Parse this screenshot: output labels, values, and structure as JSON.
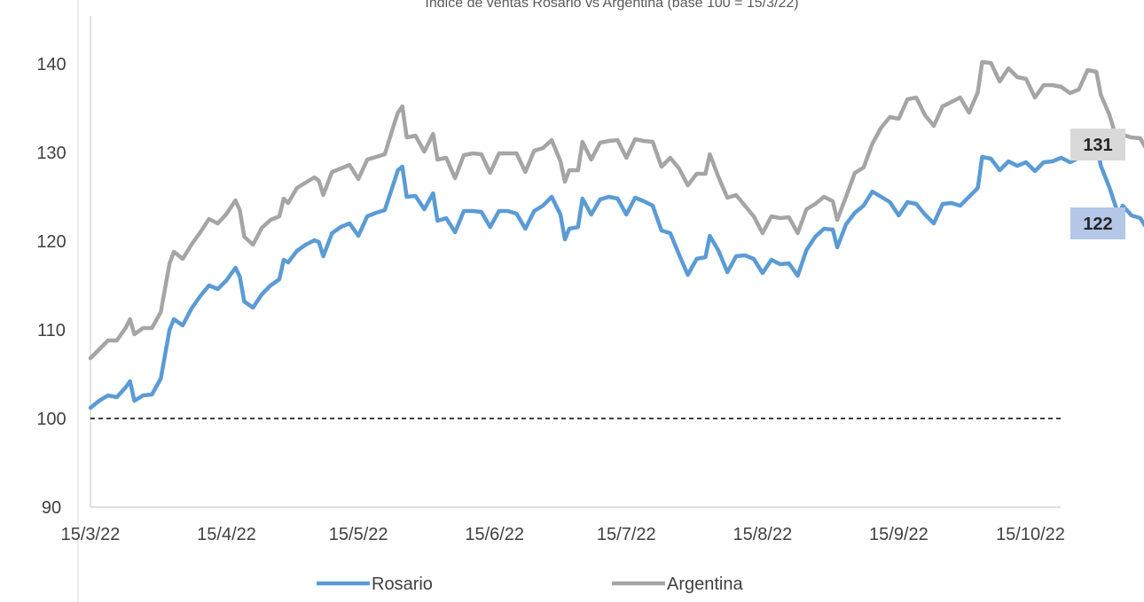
{
  "chart_data": {
    "type": "line",
    "title": "Índice de ventas Rosario vs Argentina (base 100 = 15/3/22)",
    "xlabel": "",
    "ylabel": "",
    "ylim": [
      90,
      145
    ],
    "yticks": [
      "90",
      "100",
      "110",
      "120",
      "130",
      "140"
    ],
    "xtick_labels": [
      "15/3/22",
      "15/4/22",
      "15/5/22",
      "15/6/22",
      "15/7/22",
      "15/8/22",
      "15/9/22",
      "15/10/22"
    ],
    "x_start": "15/3/22",
    "x_end": "15/10/22",
    "reference_line": 100,
    "grid": false,
    "legend_position": "bottom",
    "series": [
      {
        "name": "Rosario",
        "color": "#5b9bd5",
        "end_label": "122",
        "label_bg": "#b4c7e7",
        "points": [
          [
            "15/3/22",
            101.2
          ],
          [
            "17/3/22",
            102.0
          ],
          [
            "19/3/22",
            102.6
          ],
          [
            "21/3/22",
            102.4
          ],
          [
            "23/3/22",
            103.5
          ],
          [
            "24/3/22",
            104.2
          ],
          [
            "25/3/22",
            102.0
          ],
          [
            "27/3/22",
            102.6
          ],
          [
            "29/3/22",
            102.7
          ],
          [
            "31/3/22",
            104.5
          ],
          [
            "2/4/22",
            110.0
          ],
          [
            "3/4/22",
            111.2
          ],
          [
            "5/4/22",
            110.5
          ],
          [
            "7/4/22",
            112.4
          ],
          [
            "9/4/22",
            113.8
          ],
          [
            "11/4/22",
            115.0
          ],
          [
            "13/4/22",
            114.6
          ],
          [
            "15/4/22",
            115.6
          ],
          [
            "17/4/22",
            117.0
          ],
          [
            "18/4/22",
            116.0
          ],
          [
            "19/4/22",
            113.2
          ],
          [
            "21/4/22",
            112.5
          ],
          [
            "23/4/22",
            114.0
          ],
          [
            "25/4/22",
            115.0
          ],
          [
            "27/4/22",
            115.7
          ],
          [
            "28/4/22",
            117.9
          ],
          [
            "29/4/22",
            117.6
          ],
          [
            "1/5/22",
            118.9
          ],
          [
            "3/5/22",
            119.6
          ],
          [
            "5/5/22",
            120.1
          ],
          [
            "6/5/22",
            119.9
          ],
          [
            "7/5/22",
            118.3
          ],
          [
            "9/5/22",
            120.9
          ],
          [
            "11/5/22",
            121.6
          ],
          [
            "13/5/22",
            122.0
          ],
          [
            "15/5/22",
            120.6
          ],
          [
            "17/5/22",
            122.8
          ],
          [
            "19/5/22",
            123.2
          ],
          [
            "21/5/22",
            123.5
          ],
          [
            "23/5/22",
            126.5
          ],
          [
            "24/5/22",
            128.0
          ],
          [
            "25/5/22",
            128.4
          ],
          [
            "26/5/22",
            125.0
          ],
          [
            "28/5/22",
            125.1
          ],
          [
            "30/5/22",
            123.6
          ],
          [
            "1/6/22",
            125.4
          ],
          [
            "2/6/22",
            122.3
          ],
          [
            "4/6/22",
            122.6
          ],
          [
            "6/6/22",
            121.0
          ],
          [
            "8/6/22",
            123.4
          ],
          [
            "10/6/22",
            123.4
          ],
          [
            "12/6/22",
            123.3
          ],
          [
            "14/6/22",
            121.6
          ],
          [
            "16/6/22",
            123.4
          ],
          [
            "18/6/22",
            123.4
          ],
          [
            "20/6/22",
            123.1
          ],
          [
            "22/6/22",
            121.4
          ],
          [
            "24/6/22",
            123.4
          ],
          [
            "26/6/22",
            124.0
          ],
          [
            "28/6/22",
            125.0
          ],
          [
            "30/6/22",
            123.0
          ],
          [
            "1/7/22",
            120.2
          ],
          [
            "2/7/22",
            121.4
          ],
          [
            "4/7/22",
            121.6
          ],
          [
            "5/7/22",
            124.8
          ],
          [
            "7/7/22",
            123.0
          ],
          [
            "9/7/22",
            124.7
          ],
          [
            "11/7/22",
            125.0
          ],
          [
            "13/7/22",
            124.8
          ],
          [
            "15/7/22",
            123.0
          ],
          [
            "17/7/22",
            124.9
          ],
          [
            "19/7/22",
            124.5
          ],
          [
            "21/7/22",
            124.0
          ],
          [
            "23/7/22",
            121.2
          ],
          [
            "25/7/22",
            120.9
          ],
          [
            "27/7/22",
            118.5
          ],
          [
            "29/7/22",
            116.2
          ],
          [
            "31/7/22",
            118.0
          ],
          [
            "2/8/22",
            118.2
          ],
          [
            "3/8/22",
            120.6
          ],
          [
            "5/8/22",
            118.9
          ],
          [
            "7/8/22",
            116.5
          ],
          [
            "9/8/22",
            118.3
          ],
          [
            "11/8/22",
            118.4
          ],
          [
            "13/8/22",
            118.0
          ],
          [
            "15/8/22",
            116.4
          ],
          [
            "17/8/22",
            117.9
          ],
          [
            "19/8/22",
            117.4
          ],
          [
            "21/8/22",
            117.5
          ],
          [
            "23/8/22",
            116.1
          ],
          [
            "25/8/22",
            119.0
          ],
          [
            "27/8/22",
            120.5
          ],
          [
            "29/8/22",
            121.4
          ],
          [
            "31/8/22",
            121.3
          ],
          [
            "1/9/22",
            119.3
          ],
          [
            "3/9/22",
            121.9
          ],
          [
            "5/9/22",
            123.2
          ],
          [
            "7/9/22",
            124.0
          ],
          [
            "9/9/22",
            125.6
          ],
          [
            "11/9/22",
            125.0
          ],
          [
            "13/9/22",
            124.4
          ],
          [
            "15/9/22",
            122.9
          ],
          [
            "17/9/22",
            124.4
          ],
          [
            "19/9/22",
            124.2
          ],
          [
            "21/9/22",
            123.0
          ],
          [
            "23/9/22",
            122.0
          ],
          [
            "25/9/22",
            124.2
          ],
          [
            "27/9/22",
            124.3
          ],
          [
            "29/9/22",
            124.0
          ],
          [
            "1/10/22",
            125.0
          ],
          [
            "3/10/22",
            126.0
          ],
          [
            "4/10/22",
            129.5
          ],
          [
            "6/10/22",
            129.3
          ],
          [
            "8/10/22",
            128.0
          ],
          [
            "10/10/22",
            129.0
          ],
          [
            "12/10/22",
            128.5
          ],
          [
            "14/10/22",
            128.9
          ],
          [
            "16/10/22",
            127.9
          ],
          [
            "18/10/22",
            128.9
          ],
          [
            "20/10/22",
            129.0
          ],
          [
            "22/10/22",
            129.4
          ],
          [
            "24/10/22",
            128.9
          ],
          [
            "26/10/22",
            129.4
          ],
          [
            "28/10/22",
            131.4
          ],
          [
            "30/10/22",
            131.3
          ],
          [
            "31/10/22",
            128.5
          ],
          [
            "2/11/22",
            126.0
          ],
          [
            "4/11/22",
            123.0
          ],
          [
            "5/11/22",
            124.0
          ],
          [
            "7/11/22",
            122.9
          ],
          [
            "9/11/22",
            122.6
          ],
          [
            "10/11/22",
            121.8
          ]
        ]
      },
      {
        "name": "Argentina",
        "color": "#a5a5a5",
        "end_label": "131",
        "label_bg": "#d9d9d9",
        "points": [
          [
            "15/3/22",
            106.8
          ],
          [
            "17/3/22",
            107.8
          ],
          [
            "19/3/22",
            108.8
          ],
          [
            "21/3/22",
            108.8
          ],
          [
            "23/3/22",
            110.2
          ],
          [
            "24/3/22",
            111.2
          ],
          [
            "25/3/22",
            109.5
          ],
          [
            "27/3/22",
            110.2
          ],
          [
            "29/3/22",
            110.2
          ],
          [
            "31/3/22",
            112.0
          ],
          [
            "2/4/22",
            117.5
          ],
          [
            "3/4/22",
            118.8
          ],
          [
            "5/4/22",
            118.0
          ],
          [
            "7/4/22",
            119.6
          ],
          [
            "9/4/22",
            121.0
          ],
          [
            "11/4/22",
            122.5
          ],
          [
            "13/4/22",
            122.0
          ],
          [
            "15/4/22",
            123.1
          ],
          [
            "17/4/22",
            124.6
          ],
          [
            "18/4/22",
            123.5
          ],
          [
            "19/4/22",
            120.5
          ],
          [
            "21/4/22",
            119.6
          ],
          [
            "23/4/22",
            121.5
          ],
          [
            "25/4/22",
            122.4
          ],
          [
            "27/4/22",
            122.8
          ],
          [
            "28/4/22",
            124.8
          ],
          [
            "29/4/22",
            124.3
          ],
          [
            "1/5/22",
            126.0
          ],
          [
            "3/5/22",
            126.6
          ],
          [
            "5/5/22",
            127.2
          ],
          [
            "6/5/22",
            126.8
          ],
          [
            "7/5/22",
            125.2
          ],
          [
            "9/5/22",
            127.8
          ],
          [
            "11/5/22",
            128.2
          ],
          [
            "13/5/22",
            128.6
          ],
          [
            "15/5/22",
            127.0
          ],
          [
            "17/5/22",
            129.2
          ],
          [
            "19/5/22",
            129.5
          ],
          [
            "21/5/22",
            129.8
          ],
          [
            "23/5/22",
            133.0
          ],
          [
            "24/5/22",
            134.5
          ],
          [
            "25/5/22",
            135.2
          ],
          [
            "26/5/22",
            131.7
          ],
          [
            "28/5/22",
            131.9
          ],
          [
            "30/5/22",
            130.1
          ],
          [
            "1/6/22",
            132.1
          ],
          [
            "2/6/22",
            129.2
          ],
          [
            "4/6/22",
            129.4
          ],
          [
            "6/6/22",
            127.1
          ],
          [
            "8/6/22",
            129.7
          ],
          [
            "10/6/22",
            129.9
          ],
          [
            "12/6/22",
            129.8
          ],
          [
            "14/6/22",
            127.7
          ],
          [
            "16/6/22",
            129.9
          ],
          [
            "18/6/22",
            129.9
          ],
          [
            "20/6/22",
            129.9
          ],
          [
            "22/6/22",
            127.8
          ],
          [
            "24/6/22",
            130.2
          ],
          [
            "26/6/22",
            130.5
          ],
          [
            "28/6/22",
            131.4
          ],
          [
            "30/6/22",
            129.0
          ],
          [
            "1/7/22",
            126.7
          ],
          [
            "2/7/22",
            128.0
          ],
          [
            "4/7/22",
            128.0
          ],
          [
            "5/7/22",
            131.2
          ],
          [
            "7/7/22",
            129.2
          ],
          [
            "9/7/22",
            131.1
          ],
          [
            "11/7/22",
            131.3
          ],
          [
            "13/7/22",
            131.4
          ],
          [
            "15/7/22",
            129.4
          ],
          [
            "17/7/22",
            131.5
          ],
          [
            "19/7/22",
            131.3
          ],
          [
            "21/7/22",
            131.2
          ],
          [
            "23/7/22",
            128.4
          ],
          [
            "25/7/22",
            129.4
          ],
          [
            "27/7/22",
            128.2
          ],
          [
            "29/7/22",
            126.3
          ],
          [
            "31/7/22",
            127.6
          ],
          [
            "2/8/22",
            127.6
          ],
          [
            "3/8/22",
            129.8
          ],
          [
            "5/8/22",
            127.2
          ],
          [
            "7/8/22",
            124.9
          ],
          [
            "9/8/22",
            125.2
          ],
          [
            "11/8/22",
            124.0
          ],
          [
            "13/8/22",
            122.8
          ],
          [
            "15/8/22",
            120.9
          ],
          [
            "17/8/22",
            122.8
          ],
          [
            "19/8/22",
            122.6
          ],
          [
            "21/8/22",
            122.7
          ],
          [
            "23/8/22",
            120.9
          ],
          [
            "25/8/22",
            123.6
          ],
          [
            "27/8/22",
            124.2
          ],
          [
            "29/8/22",
            125.0
          ],
          [
            "31/8/22",
            124.5
          ],
          [
            "1/9/22",
            122.4
          ],
          [
            "3/9/22",
            125.0
          ],
          [
            "5/9/22",
            127.7
          ],
          [
            "7/9/22",
            128.3
          ],
          [
            "9/9/22",
            131.0
          ],
          [
            "11/9/22",
            132.8
          ],
          [
            "13/9/22",
            134.0
          ],
          [
            "15/9/22",
            133.8
          ],
          [
            "17/9/22",
            136.0
          ],
          [
            "19/9/22",
            136.2
          ],
          [
            "21/9/22",
            134.2
          ],
          [
            "23/9/22",
            133.0
          ],
          [
            "25/9/22",
            135.2
          ],
          [
            "27/9/22",
            135.7
          ],
          [
            "29/9/22",
            136.2
          ],
          [
            "1/10/22",
            134.5
          ],
          [
            "3/10/22",
            136.8
          ],
          [
            "4/10/22",
            140.2
          ],
          [
            "6/10/22",
            140.1
          ],
          [
            "8/10/22",
            138.0
          ],
          [
            "10/10/22",
            139.5
          ],
          [
            "12/10/22",
            138.5
          ],
          [
            "14/10/22",
            138.3
          ],
          [
            "16/10/22",
            136.2
          ],
          [
            "18/10/22",
            137.6
          ],
          [
            "20/10/22",
            137.6
          ],
          [
            "22/10/22",
            137.4
          ],
          [
            "24/10/22",
            136.7
          ],
          [
            "26/10/22",
            137.1
          ],
          [
            "28/10/22",
            139.3
          ],
          [
            "30/10/22",
            139.1
          ],
          [
            "31/10/22",
            136.5
          ],
          [
            "2/11/22",
            134.2
          ],
          [
            "4/11/22",
            130.9
          ],
          [
            "5/11/22",
            132.0
          ],
          [
            "7/11/22",
            131.7
          ],
          [
            "9/11/22",
            131.6
          ],
          [
            "10/11/22",
            130.7
          ]
        ]
      }
    ]
  }
}
